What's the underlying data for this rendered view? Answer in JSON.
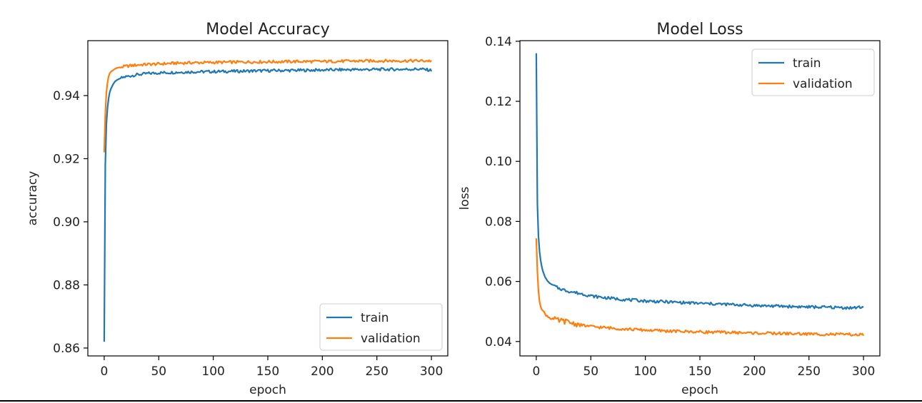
{
  "chart_data": [
    {
      "type": "line",
      "title": "Model Accuracy",
      "xlabel": "epoch",
      "ylabel": "accuracy",
      "xlim": [
        -15,
        315
      ],
      "ylim": [
        0.8575,
        0.9574
      ],
      "xticks": [
        0,
        50,
        100,
        150,
        200,
        250,
        300
      ],
      "yticks": [
        0.86,
        0.88,
        0.9,
        0.92,
        0.94
      ],
      "ytick_labels": [
        "0.86",
        "0.88",
        "0.90",
        "0.92",
        "0.94"
      ],
      "grid": false,
      "legend_position": "lower-right",
      "series": [
        {
          "name": "train",
          "color": "#1f77b4",
          "x": [
            0,
            1,
            2,
            3,
            4,
            5,
            6,
            8,
            10,
            12,
            15,
            20,
            25,
            30,
            40,
            50,
            60,
            80,
            100,
            120,
            150,
            180,
            200,
            220,
            250,
            270,
            290,
            300
          ],
          "y": [
            0.862,
            0.918,
            0.931,
            0.936,
            0.939,
            0.941,
            0.942,
            0.9435,
            0.9445,
            0.945,
            0.9455,
            0.946,
            0.9463,
            0.9466,
            0.947,
            0.9472,
            0.9473,
            0.9475,
            0.9476,
            0.9477,
            0.9479,
            0.948,
            0.9481,
            0.9482,
            0.9483,
            0.9483,
            0.9484,
            0.948
          ]
        },
        {
          "name": "validation",
          "color": "#ff7f0e",
          "x": [
            0,
            1,
            2,
            3,
            4,
            5,
            6,
            8,
            10,
            12,
            15,
            20,
            25,
            30,
            40,
            50,
            60,
            80,
            100,
            120,
            150,
            180,
            200,
            220,
            250,
            270,
            290,
            300
          ],
          "y": [
            0.922,
            0.934,
            0.941,
            0.944,
            0.946,
            0.947,
            0.9475,
            0.948,
            0.9485,
            0.9488,
            0.949,
            0.9493,
            0.9495,
            0.9497,
            0.9499,
            0.95,
            0.9502,
            0.9504,
            0.9505,
            0.9506,
            0.9507,
            0.9508,
            0.9508,
            0.9509,
            0.951,
            0.951,
            0.951,
            0.951
          ]
        }
      ]
    },
    {
      "type": "line",
      "title": "Model Loss",
      "xlabel": "epoch",
      "ylabel": "loss",
      "xlim": [
        -15,
        315
      ],
      "ylim": [
        0.0352,
        0.1402
      ],
      "xticks": [
        0,
        50,
        100,
        150,
        200,
        250,
        300
      ],
      "yticks": [
        0.04,
        0.06,
        0.08,
        0.1,
        0.12,
        0.14
      ],
      "ytick_labels": [
        "0.04",
        "0.06",
        "0.08",
        "0.10",
        "0.12",
        "0.14"
      ],
      "grid": false,
      "legend_position": "upper-right",
      "series": [
        {
          "name": "train",
          "color": "#1f77b4",
          "x": [
            0,
            1,
            2,
            3,
            4,
            5,
            6,
            8,
            10,
            12,
            15,
            20,
            25,
            30,
            40,
            50,
            60,
            80,
            100,
            120,
            150,
            180,
            200,
            220,
            250,
            270,
            290,
            300
          ],
          "y": [
            0.136,
            0.086,
            0.075,
            0.07,
            0.067,
            0.065,
            0.0635,
            0.0615,
            0.0603,
            0.0595,
            0.0588,
            0.0578,
            0.0572,
            0.0567,
            0.056,
            0.0552,
            0.0547,
            0.054,
            0.0535,
            0.0532,
            0.0527,
            0.0523,
            0.052,
            0.0518,
            0.0515,
            0.0514,
            0.0512,
            0.0515
          ]
        },
        {
          "name": "validation",
          "color": "#ff7f0e",
          "x": [
            0,
            1,
            2,
            3,
            4,
            5,
            6,
            8,
            10,
            12,
            15,
            20,
            25,
            30,
            40,
            50,
            60,
            80,
            100,
            120,
            150,
            180,
            200,
            220,
            250,
            270,
            290,
            300
          ],
          "y": [
            0.0745,
            0.063,
            0.057,
            0.0535,
            0.052,
            0.051,
            0.0502,
            0.0492,
            0.0485,
            0.048,
            0.0475,
            0.047,
            0.0468,
            0.0464,
            0.0455,
            0.045,
            0.0447,
            0.0442,
            0.0438,
            0.0435,
            0.0432,
            0.043,
            0.0428,
            0.0427,
            0.0425,
            0.0424,
            0.0423,
            0.0422
          ]
        }
      ]
    }
  ]
}
